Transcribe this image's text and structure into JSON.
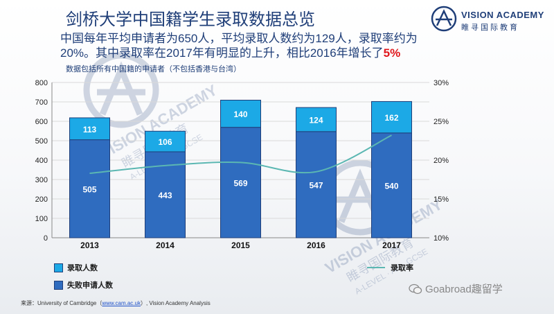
{
  "header": {
    "title": "剑桥大学中国籍学生录取数据总览",
    "subtitle_part1": "中国每年平均申请者为650人，平均录取人数约为129人，录取率约为20%。其中录取率在2017年有明显的上升，相比2016年增长了",
    "subtitle_highlight": "5%",
    "note": "数据包括所有中国籍的申请者（不包括香港与台湾）"
  },
  "logo": {
    "name": "VISION ACADEMY",
    "cn": "睢寻国际教育"
  },
  "watermark": {
    "name": "VISION ACADEMY",
    "cn": "睢寻国际教育",
    "sub": "A-LEVEL · AP · GCSE"
  },
  "chart_data": {
    "type": "bar",
    "subtype": "stacked_with_line",
    "categories": [
      "2013",
      "2014",
      "2015",
      "2016",
      "2017"
    ],
    "series": [
      {
        "name": "失败申请人数",
        "values": [
          505,
          443,
          569,
          547,
          540
        ],
        "color": "#2f6cbf",
        "axis": "left"
      },
      {
        "name": "录取人数",
        "values": [
          113,
          106,
          140,
          124,
          162
        ],
        "color": "#1ca9e6",
        "axis": "left"
      },
      {
        "name": "录取率",
        "type": "line",
        "values": [
          18.3,
          19.3,
          19.7,
          18.5,
          23.2
        ],
        "color": "#5bb7b2",
        "axis": "right"
      }
    ],
    "ylim": [
      0,
      800
    ],
    "yticks": [
      "0",
      "100",
      "200",
      "300",
      "400",
      "500",
      "600",
      "700",
      "800"
    ],
    "y2lim": [
      10,
      30
    ],
    "y2ticks": [
      "10%",
      "15%",
      "20%",
      "25%",
      "30%"
    ],
    "legend": {
      "admitted": "录取人数",
      "failed": "失败申请人数",
      "rate": "录取率",
      "position": "bottom"
    }
  },
  "footer": {
    "source_prefix": "来源：University of Cambridge（",
    "source_link": "www.cam.ac.uk",
    "source_suffix": "）, Vision Academy Analysis",
    "wechat": "Goabroad趣留学"
  }
}
